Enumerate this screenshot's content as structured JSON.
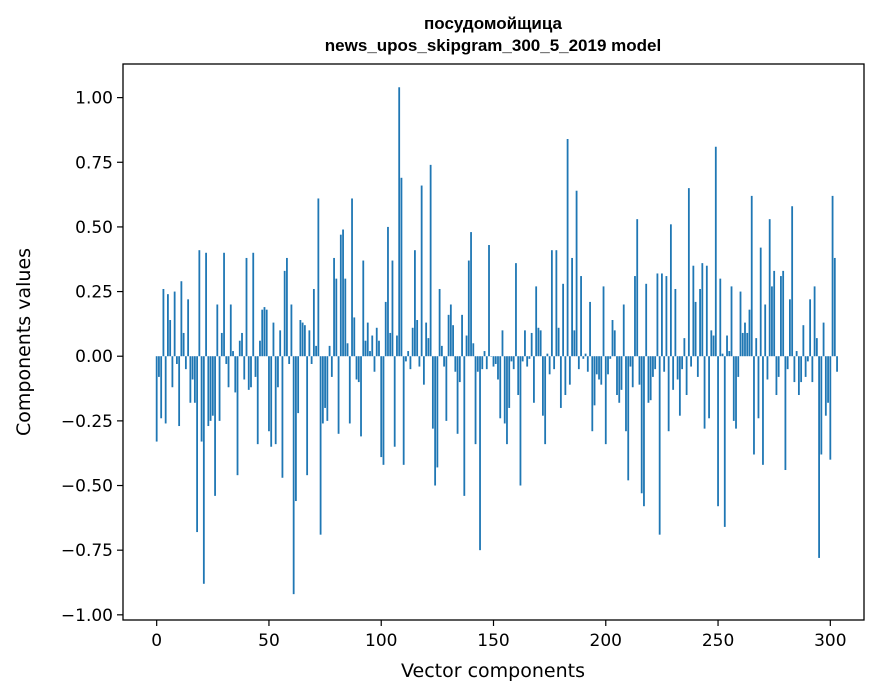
{
  "chart_data": {
    "type": "bar",
    "title": "посудомойщица",
    "subtitle": "news_upos_skipgram_300_5_2019 model",
    "xlabel": "Vector components",
    "ylabel": "Components values",
    "xlim": [
      -15,
      315
    ],
    "ylim": [
      -1.02,
      1.13
    ],
    "xticks": [
      0,
      50,
      100,
      150,
      200,
      250,
      300
    ],
    "yticks": [
      -1.0,
      -0.75,
      -0.5,
      -0.25,
      0.0,
      0.25,
      0.5,
      0.75,
      1.0
    ],
    "ytick_labels": [
      "−1.00",
      "−0.75",
      "−0.50",
      "−0.25",
      "0.00",
      "0.25",
      "0.50",
      "0.75",
      "1.00"
    ],
    "grid": false,
    "bar_color": "#1f77b4",
    "values": [
      -0.33,
      -0.08,
      -0.24,
      0.26,
      -0.26,
      0.24,
      0.14,
      -0.12,
      0.25,
      -0.03,
      -0.27,
      0.29,
      0.09,
      -0.05,
      0.22,
      -0.18,
      -0.09,
      -0.18,
      -0.68,
      0.41,
      -0.33,
      -0.88,
      0.4,
      -0.27,
      -0.25,
      -0.23,
      -0.54,
      0.2,
      -0.25,
      0.09,
      0.4,
      -0.03,
      -0.12,
      0.2,
      0.02,
      -0.14,
      -0.46,
      0.06,
      0.09,
      -0.09,
      0.38,
      -0.13,
      -0.12,
      0.4,
      -0.08,
      -0.34,
      0.06,
      0.18,
      0.19,
      0.18,
      -0.29,
      -0.35,
      0.13,
      -0.34,
      -0.12,
      0.1,
      -0.47,
      0.33,
      0.38,
      -0.03,
      0.2,
      -0.92,
      -0.56,
      -0.22,
      0.14,
      0.13,
      0.12,
      -0.46,
      0.1,
      -0.03,
      0.26,
      0.04,
      0.61,
      -0.69,
      -0.26,
      -0.2,
      -0.25,
      0.04,
      -0.08,
      0.38,
      0.3,
      -0.3,
      0.47,
      0.49,
      0.3,
      0.05,
      -0.26,
      0.61,
      0.15,
      -0.09,
      -0.1,
      -0.31,
      0.37,
      0.06,
      0.13,
      0.02,
      0.08,
      -0.06,
      0.11,
      0.06,
      -0.39,
      -0.42,
      0.21,
      0.5,
      0.09,
      0.37,
      -0.35,
      0.08,
      1.04,
      0.69,
      -0.42,
      -0.02,
      0.02,
      -0.05,
      0.11,
      0.41,
      0.14,
      -0.04,
      0.66,
      -0.11,
      0.13,
      0.07,
      0.74,
      -0.28,
      -0.5,
      -0.43,
      0.26,
      0.04,
      -0.04,
      -0.25,
      0.16,
      0.2,
      0.12,
      -0.06,
      -0.3,
      -0.1,
      0.16,
      -0.54,
      0.08,
      0.37,
      0.48,
      0.05,
      -0.34,
      -0.06,
      -0.75,
      -0.05,
      0.02,
      -0.05,
      0.43,
      0.0,
      -0.04,
      -0.03,
      -0.09,
      -0.24,
      0.1,
      -0.26,
      -0.34,
      -0.2,
      -0.02,
      -0.05,
      0.36,
      -0.15,
      -0.5,
      -0.02,
      0.1,
      -0.04,
      -0.01,
      0.09,
      -0.18,
      0.27,
      0.11,
      0.1,
      -0.23,
      -0.34,
      0.01,
      -0.07,
      0.41,
      -0.05,
      0.41,
      0.11,
      -0.2,
      0.28,
      -0.15,
      0.84,
      -0.11,
      0.38,
      0.1,
      0.64,
      -0.05,
      0.31,
      -0.01,
      0.01,
      -0.06,
      0.21,
      -0.29,
      -0.19,
      -0.07,
      -0.09,
      -0.11,
      0.27,
      -0.34,
      -0.07,
      -0.01,
      0.14,
      0.1,
      -0.15,
      -0.18,
      -0.13,
      0.2,
      -0.29,
      -0.48,
      -0.04,
      -0.12,
      0.31,
      0.53,
      -0.11,
      -0.53,
      -0.58,
      0.28,
      -0.18,
      -0.17,
      -0.08,
      -0.05,
      0.32,
      -0.69,
      0.32,
      -0.06,
      0.31,
      -0.29,
      0.51,
      -0.13,
      0.26,
      -0.09,
      -0.23,
      -0.05,
      0.07,
      -0.15,
      0.65,
      -0.04,
      0.35,
      0.21,
      -0.08,
      0.26,
      0.36,
      -0.28,
      0.35,
      -0.24,
      0.1,
      0.08,
      0.81,
      -0.58,
      0.3,
      0.01,
      -0.66,
      0.08,
      0.02,
      0.27,
      -0.25,
      -0.28,
      -0.08,
      0.25,
      0.09,
      0.13,
      0.09,
      0.18,
      0.62,
      -0.38,
      0.07,
      -0.24,
      0.42,
      -0.42,
      0.2,
      -0.09,
      0.53,
      0.27,
      0.33,
      -0.15,
      -0.08,
      0.31,
      0.33,
      -0.44,
      -0.05,
      0.22,
      0.58,
      -0.1,
      0.02,
      -0.15,
      -0.1,
      0.12,
      -0.08,
      -0.02,
      0.22,
      -0.1,
      0.27,
      0.07,
      -0.78,
      -0.38,
      0.13,
      -0.23,
      -0.18,
      -0.4,
      0.62,
      0.38,
      -0.06
    ]
  }
}
